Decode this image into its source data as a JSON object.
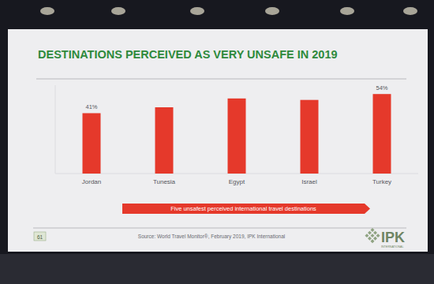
{
  "chart_data": {
    "type": "bar",
    "title": "DESTINATIONS PERCEIVED AS VERY UNSAFE IN 2019",
    "categories": [
      "Jordan",
      "Tunesia",
      "Egypt",
      "Israel",
      "Turkey"
    ],
    "values": [
      41,
      45,
      51,
      50,
      54
    ],
    "value_labels": [
      "41%",
      null,
      null,
      null,
      "54%"
    ],
    "color": "#e5392b",
    "ylim": [
      0,
      60
    ],
    "tick_labels": "x",
    "data_labels": true,
    "annotation": "Five unsafest perceived international travel destinations",
    "source": "Source: World Travel Monitor®, February 2019, IPK International"
  },
  "slide": {
    "page_number": 61,
    "logo": "IPK",
    "logo_subtitle": "INTERNATIONAL"
  }
}
